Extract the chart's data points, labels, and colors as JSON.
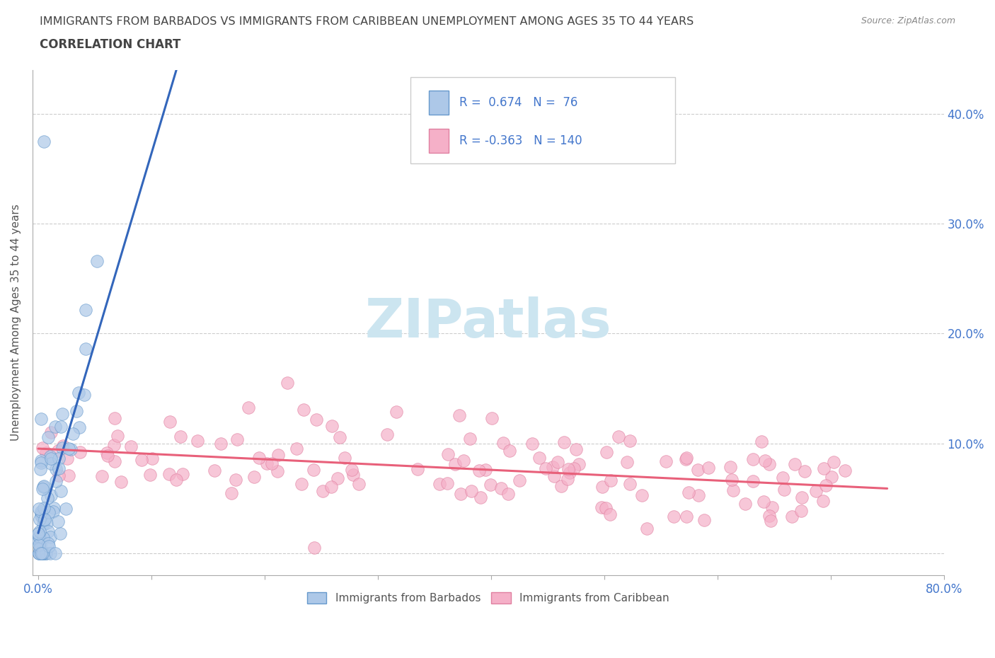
{
  "title": "IMMIGRANTS FROM BARBADOS VS IMMIGRANTS FROM CARIBBEAN UNEMPLOYMENT AMONG AGES 35 TO 44 YEARS",
  "subtitle": "CORRELATION CHART",
  "source": "Source: ZipAtlas.com",
  "ylabel": "Unemployment Among Ages 35 to 44 years",
  "xlim": [
    -0.005,
    0.8
  ],
  "ylim": [
    -0.02,
    0.44
  ],
  "xticks": [
    0.0,
    0.1,
    0.2,
    0.3,
    0.4,
    0.5,
    0.6,
    0.7,
    0.8
  ],
  "xtick_labels": [
    "0.0%",
    "",
    "",
    "",
    "",
    "",
    "",
    "",
    "80.0%"
  ],
  "yticks": [
    0.0,
    0.1,
    0.2,
    0.3,
    0.4
  ],
  "ytick_labels_right": [
    "",
    "10.0%",
    "20.0%",
    "30.0%",
    "40.0%"
  ],
  "R_barbados": 0.674,
  "N_barbados": 76,
  "R_caribbean": -0.363,
  "N_caribbean": 140,
  "color_barbados": "#adc8e8",
  "color_barbados_edge": "#6699cc",
  "color_barbados_line": "#3366bb",
  "color_caribbean": "#f5b0c8",
  "color_caribbean_edge": "#e080a0",
  "color_caribbean_line": "#e8607a",
  "watermark": "ZIPatlas",
  "watermark_color": "#cce5f0",
  "background_color": "#ffffff",
  "grid_color": "#cccccc",
  "title_color": "#444444",
  "axis_label_color": "#555555",
  "tick_color_blue": "#4477cc",
  "legend_text_color": "#333333",
  "seed": 42
}
